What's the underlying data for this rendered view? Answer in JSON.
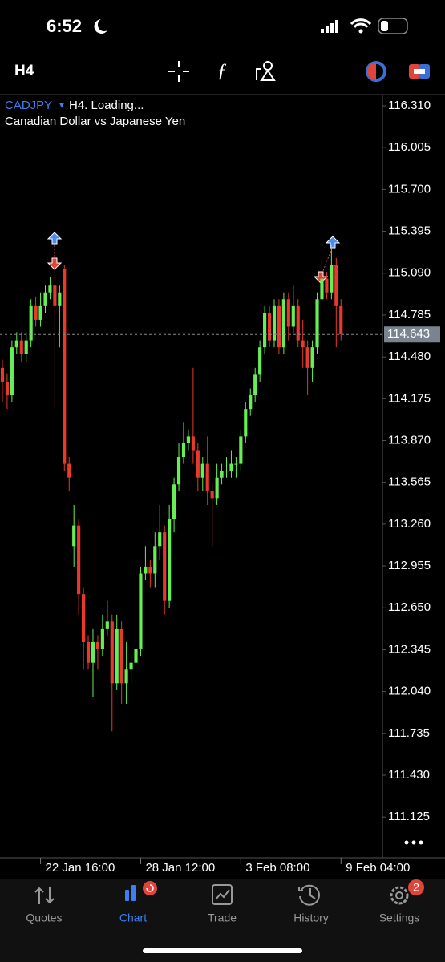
{
  "status_bar": {
    "time": "6:52"
  },
  "toolbar": {
    "timeframe": "H4"
  },
  "chart_data": {
    "type": "candlestick",
    "symbol": "CADJPY",
    "info": "H4. Loading...",
    "subtitle": "Canadian Dollar vs Japanese Yen",
    "up_color": "#66ee55",
    "down_color": "#e8392c",
    "open": [
      114.4,
      114.3,
      114.2,
      114.55,
      114.6,
      114.5,
      114.6,
      114.85,
      114.75,
      114.85,
      114.95,
      115.0,
      114.85,
      115.12,
      113.7,
      113.1,
      113.25,
      112.75,
      112.4,
      112.25,
      112.4,
      112.35,
      112.5,
      112.55,
      112.1,
      112.5,
      112.1,
      112.2,
      112.25,
      112.35,
      112.9,
      112.95,
      112.9,
      113.1,
      113.2,
      112.7,
      113.3,
      113.55,
      113.75,
      113.85,
      113.9,
      113.8,
      113.6,
      113.7,
      113.5,
      113.45,
      113.6,
      113.65,
      113.65,
      113.7,
      113.7,
      113.9,
      114.1,
      114.2,
      114.35,
      114.55,
      114.8,
      114.6,
      114.85,
      114.55,
      114.9,
      114.7,
      114.85,
      114.6,
      114.55,
      114.4,
      114.55,
      114.9,
      115.05,
      114.95,
      115.15,
      114.85
    ],
    "high": [
      114.46,
      114.36,
      114.6,
      114.66,
      114.66,
      114.66,
      114.9,
      114.92,
      114.95,
      115.0,
      115.06,
      115.3,
      115.0,
      115.15,
      113.75,
      113.4,
      113.3,
      112.8,
      112.45,
      112.5,
      112.45,
      112.6,
      112.7,
      112.6,
      112.6,
      112.55,
      112.4,
      112.3,
      112.45,
      112.95,
      113.1,
      113.0,
      113.2,
      113.4,
      113.25,
      113.4,
      113.6,
      113.85,
      114.0,
      113.95,
      114.4,
      113.85,
      113.75,
      113.9,
      113.55,
      113.7,
      113.7,
      113.75,
      113.8,
      113.75,
      113.95,
      114.15,
      114.25,
      114.4,
      114.6,
      114.85,
      114.85,
      114.9,
      114.9,
      114.95,
      114.95,
      115.0,
      114.9,
      114.75,
      114.6,
      114.6,
      114.95,
      115.2,
      115.1,
      115.3,
      115.2,
      114.9
    ],
    "low": [
      114.15,
      114.1,
      114.15,
      114.5,
      114.44,
      114.44,
      114.55,
      114.7,
      114.7,
      114.8,
      114.9,
      114.1,
      114.55,
      113.65,
      113.5,
      112.95,
      112.6,
      112.2,
      112.2,
      112.0,
      112.2,
      112.3,
      112.45,
      111.75,
      112.05,
      111.95,
      111.95,
      112.1,
      112.2,
      112.3,
      112.85,
      112.8,
      112.8,
      113.0,
      112.6,
      112.65,
      113.2,
      113.5,
      113.7,
      113.8,
      113.7,
      113.5,
      113.5,
      113.4,
      113.1,
      113.4,
      113.55,
      113.6,
      113.6,
      113.6,
      113.65,
      113.85,
      114.05,
      114.15,
      114.3,
      114.5,
      114.55,
      114.55,
      114.5,
      114.5,
      114.6,
      114.65,
      114.55,
      114.4,
      114.2,
      114.3,
      114.5,
      114.85,
      114.9,
      114.9,
      114.55,
      114.6
    ],
    "close": [
      114.3,
      114.2,
      114.55,
      114.6,
      114.5,
      114.6,
      114.85,
      114.75,
      114.85,
      114.95,
      115.0,
      114.85,
      114.95,
      113.7,
      113.6,
      113.25,
      112.75,
      112.4,
      112.25,
      112.4,
      112.35,
      112.5,
      112.55,
      112.1,
      112.5,
      112.1,
      112.2,
      112.25,
      112.35,
      112.9,
      112.95,
      112.9,
      113.1,
      113.2,
      112.7,
      113.3,
      113.55,
      113.75,
      113.85,
      113.9,
      113.8,
      113.6,
      113.7,
      113.5,
      113.45,
      113.6,
      113.65,
      113.65,
      113.7,
      113.7,
      113.9,
      114.1,
      114.2,
      114.35,
      114.55,
      114.8,
      114.6,
      114.85,
      114.55,
      114.9,
      114.7,
      114.85,
      114.6,
      114.55,
      114.4,
      114.55,
      114.9,
      115.05,
      114.95,
      115.15,
      114.85,
      114.643
    ],
    "current_price": 114.643,
    "ylim": [
      110.828,
      116.392
    ],
    "yticks": [
      {
        "value": 116.31,
        "label": "116.310"
      },
      116.005,
      {
        "value": 115.7,
        "label": "115.700"
      },
      115.395,
      {
        "value": 115.09,
        "label": "115.090"
      },
      114.785,
      {
        "value": 114.48,
        "label": "114.480"
      },
      114.175,
      {
        "value": 113.87,
        "label": "113.870"
      },
      113.565,
      {
        "value": 113.26,
        "label": "113.260"
      },
      112.955,
      {
        "value": 112.65,
        "label": "112.650"
      },
      112.345,
      {
        "value": 112.04,
        "label": "112.040"
      },
      111.735,
      {
        "value": 111.43,
        "label": "111.430"
      },
      111.125
    ],
    "xlim": [
      -0.5,
      79.7
    ],
    "xticks": [
      {
        "value": 8,
        "label": "22 Jan 16:00"
      },
      {
        "value": 29,
        "label": "28 Jan 12:00"
      },
      {
        "value": 50,
        "label": "3 Feb 08:00"
      },
      {
        "value": 71,
        "label": "9 Feb 04:00"
      }
    ]
  },
  "tab_bar": {
    "tabs": [
      "Quotes",
      "Chart",
      "Trade",
      "History",
      "Settings"
    ],
    "settings_badge": "2"
  }
}
